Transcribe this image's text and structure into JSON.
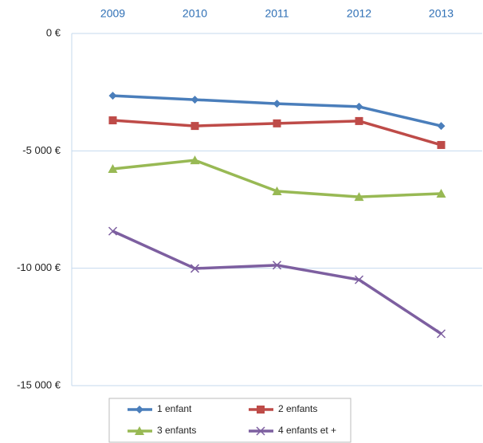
{
  "chart_data": {
    "type": "line",
    "categories": [
      "2009",
      "2010",
      "2011",
      "2012",
      "2013"
    ],
    "ylim": [
      -15000,
      0
    ],
    "yticks": [
      {
        "value": 0,
        "label": "0 €"
      },
      {
        "value": -5000,
        "label": "-5 000 €"
      },
      {
        "value": -10000,
        "label": "-10 000 €"
      },
      {
        "value": -15000,
        "label": "-15 000 €"
      }
    ],
    "grid": true,
    "x_axis_position": "top",
    "legend": "bottom",
    "series": [
      {
        "name": "1 enfant",
        "color": "#4a7ebb",
        "marker": "diamond",
        "values": [
          -2650,
          -2820,
          -2990,
          -3120,
          -3940
        ]
      },
      {
        "name": "2 enfants",
        "color": "#be4b48",
        "marker": "square",
        "values": [
          -3700,
          -3940,
          -3830,
          -3730,
          -4750
        ]
      },
      {
        "name": "3 enfants",
        "color": "#98b954",
        "marker": "triangle",
        "values": [
          -5770,
          -5400,
          -6720,
          -6960,
          -6820
        ]
      },
      {
        "name": "4 enfants et +",
        "color": "#7d5fa0",
        "marker": "x",
        "values": [
          -8420,
          -10010,
          -9870,
          -10490,
          -12790
        ]
      }
    ]
  }
}
